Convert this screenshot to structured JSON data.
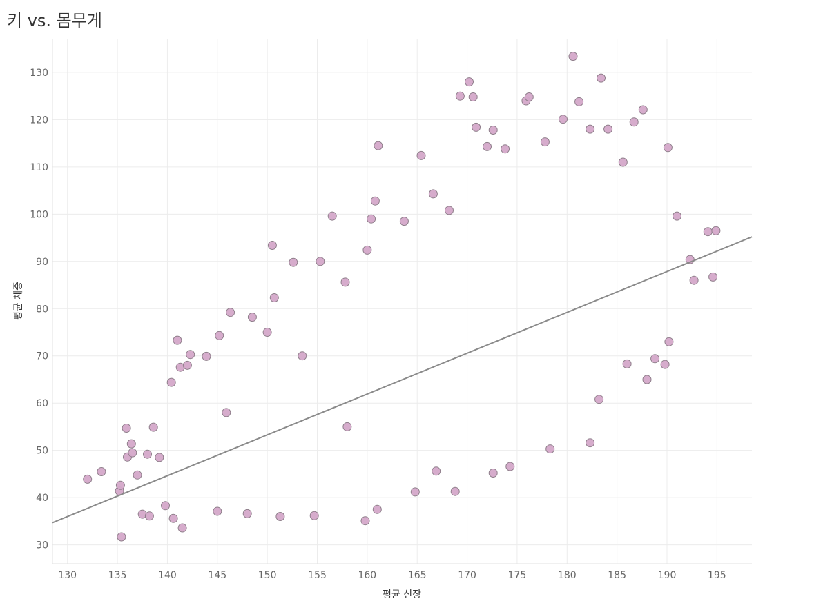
{
  "chart_data": {
    "type": "scatter",
    "title": "키 vs. 몸무게",
    "xlabel": "평균 신장",
    "ylabel": "평균 체중",
    "xlim": [
      128.5,
      198.5
    ],
    "ylim": [
      26,
      137
    ],
    "xticks": [
      130,
      135,
      140,
      145,
      150,
      155,
      160,
      165,
      170,
      175,
      180,
      185,
      190,
      195
    ],
    "yticks": [
      30,
      40,
      50,
      60,
      70,
      80,
      90,
      100,
      110,
      120,
      130
    ],
    "grid": true,
    "legend": "none",
    "colors": {
      "point_fill": "#d4a8c9",
      "point_stroke": "#8e7e8a",
      "trend": "#8a8a8a",
      "grid": "#ececec"
    },
    "trend_line": {
      "x": [
        128.5,
        198.5
      ],
      "y": [
        34.7,
        95.2
      ]
    },
    "points": [
      [
        132.0,
        43.9
      ],
      [
        133.4,
        45.5
      ],
      [
        135.2,
        41.4
      ],
      [
        135.3,
        42.6
      ],
      [
        135.4,
        31.7
      ],
      [
        135.9,
        54.7
      ],
      [
        136.0,
        48.6
      ],
      [
        136.4,
        51.4
      ],
      [
        136.5,
        49.5
      ],
      [
        137.0,
        44.8
      ],
      [
        137.5,
        36.5
      ],
      [
        138.2,
        36.1
      ],
      [
        138.0,
        49.2
      ],
      [
        138.6,
        54.9
      ],
      [
        139.2,
        48.5
      ],
      [
        140.4,
        64.4
      ],
      [
        141.0,
        73.3
      ],
      [
        141.3,
        67.6
      ],
      [
        142.0,
        68.0
      ],
      [
        142.3,
        70.3
      ],
      [
        143.9,
        69.9
      ],
      [
        145.2,
        74.3
      ],
      [
        146.3,
        79.2
      ],
      [
        148.5,
        78.2
      ],
      [
        150.5,
        93.4
      ],
      [
        150.7,
        82.3
      ],
      [
        152.6,
        89.8
      ],
      [
        155.3,
        90.0
      ],
      [
        156.5,
        99.6
      ],
      [
        157.8,
        85.6
      ],
      [
        160.0,
        92.4
      ],
      [
        160.4,
        99.0
      ],
      [
        160.8,
        102.8
      ],
      [
        161.1,
        114.5
      ],
      [
        163.7,
        98.5
      ],
      [
        165.4,
        112.4
      ],
      [
        166.6,
        104.3
      ],
      [
        168.2,
        100.8
      ],
      [
        169.3,
        125.0
      ],
      [
        170.2,
        128.0
      ],
      [
        170.6,
        124.8
      ],
      [
        170.9,
        118.4
      ],
      [
        172.0,
        114.3
      ],
      [
        172.6,
        117.8
      ],
      [
        173.8,
        113.8
      ],
      [
        175.9,
        124.0
      ],
      [
        176.2,
        124.8
      ],
      [
        177.8,
        115.3
      ],
      [
        179.6,
        120.1
      ],
      [
        180.6,
        133.4
      ],
      [
        181.2,
        123.8
      ],
      [
        182.3,
        118.0
      ],
      [
        183.4,
        128.8
      ],
      [
        184.1,
        118.0
      ],
      [
        185.6,
        111.0
      ],
      [
        186.7,
        119.5
      ],
      [
        187.6,
        122.1
      ],
      [
        190.1,
        114.1
      ],
      [
        191.0,
        99.6
      ],
      [
        192.3,
        90.4
      ],
      [
        192.7,
        86.0
      ],
      [
        194.1,
        96.3
      ],
      [
        194.6,
        86.7
      ],
      [
        194.9,
        96.5
      ],
      [
        189.8,
        68.2
      ],
      [
        188.0,
        65.0
      ],
      [
        186.0,
        68.3
      ],
      [
        183.2,
        60.8
      ],
      [
        182.3,
        51.6
      ],
      [
        178.3,
        50.3
      ],
      [
        174.3,
        46.6
      ],
      [
        172.6,
        45.2
      ],
      [
        168.8,
        41.3
      ],
      [
        166.9,
        45.6
      ],
      [
        164.8,
        41.2
      ],
      [
        161.0,
        37.5
      ],
      [
        159.8,
        35.1
      ],
      [
        154.7,
        36.2
      ],
      [
        151.3,
        36.0
      ],
      [
        148.0,
        36.6
      ],
      [
        145.0,
        37.1
      ],
      [
        141.5,
        33.6
      ],
      [
        140.6,
        35.6
      ],
      [
        139.8,
        38.3
      ],
      [
        188.8,
        69.4
      ],
      [
        190.2,
        73.0
      ],
      [
        150.0,
        75.0
      ],
      [
        145.9,
        58.0
      ],
      [
        153.5,
        70.0
      ],
      [
        158.0,
        55.0
      ]
    ]
  }
}
